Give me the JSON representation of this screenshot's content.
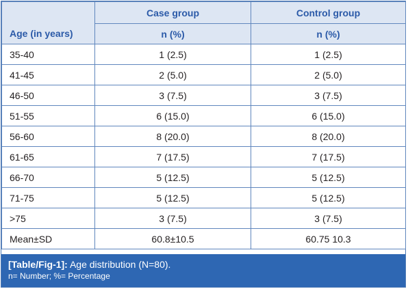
{
  "header": {
    "case_group": "Case group",
    "control_group": "Control group",
    "age_label": "Age (in years)",
    "case_unit": "n (%)",
    "control_unit": "n (%)"
  },
  "rows": [
    {
      "age": "35-40",
      "case": "1 (2.5)",
      "control": "1 (2.5)"
    },
    {
      "age": "41-45",
      "case": "2 (5.0)",
      "control": "2 (5.0)"
    },
    {
      "age": "46-50",
      "case": "3 (7.5)",
      "control": "3 (7.5)"
    },
    {
      "age": "51-55",
      "case": "6 (15.0)",
      "control": "6 (15.0)"
    },
    {
      "age": "56-60",
      "case": "8 (20.0)",
      "control": "8 (20.0)"
    },
    {
      "age": "61-65",
      "case": "7 (17.5)",
      "control": "7 (17.5)"
    },
    {
      "age": "66-70",
      "case": "5 (12.5)",
      "control": "5 (12.5)"
    },
    {
      "age": "71-75",
      "case": "5 (12.5)",
      "control": "5 (12.5)"
    },
    {
      "age": ">75",
      "case": "3 (7.5)",
      "control": "3 (7.5)"
    },
    {
      "age": "Mean±SD",
      "case": "60.8±10.5",
      "control": "60.75 10.3"
    }
  ],
  "caption": {
    "label": "[Table/Fig-1]:",
    "title": " Age distribution (N=80).",
    "note": "n= Number; %= Percentage"
  },
  "colors": {
    "header_bg": "#dde6f3",
    "header_text": "#2b5aa8",
    "border": "#5f86bd",
    "caption_bg": "#2e67b3"
  }
}
